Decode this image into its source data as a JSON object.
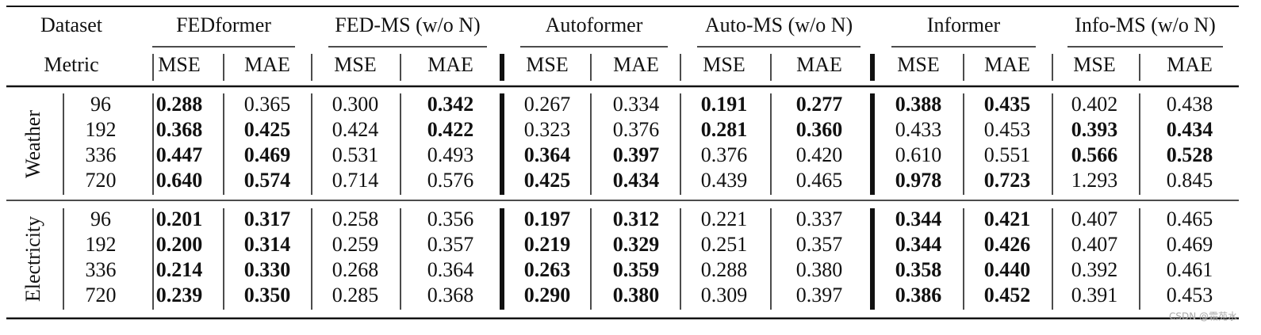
{
  "header": {
    "dataset": "Dataset",
    "metric": "Metric",
    "models": [
      "FEDformer",
      "FED-MS (w/o N)",
      "Autoformer",
      "Auto-MS (w/o N)",
      "Informer",
      "Info-MS (w/o N)"
    ],
    "metrics": [
      "MSE",
      "MAE"
    ]
  },
  "datasets": [
    {
      "name": "Weather",
      "rows": [
        {
          "horizon": "96",
          "values": [
            "0.288",
            "0.365",
            "0.300",
            "0.342",
            "0.267",
            "0.334",
            "0.191",
            "0.277",
            "0.388",
            "0.435",
            "0.402",
            "0.438"
          ],
          "bold": [
            true,
            false,
            false,
            true,
            false,
            false,
            true,
            true,
            true,
            true,
            false,
            false
          ]
        },
        {
          "horizon": "192",
          "values": [
            "0.368",
            "0.425",
            "0.424",
            "0.422",
            "0.323",
            "0.376",
            "0.281",
            "0.360",
            "0.433",
            "0.453",
            "0.393",
            "0.434"
          ],
          "bold": [
            true,
            true,
            false,
            true,
            false,
            false,
            true,
            true,
            false,
            false,
            true,
            true
          ]
        },
        {
          "horizon": "336",
          "values": [
            "0.447",
            "0.469",
            "0.531",
            "0.493",
            "0.364",
            "0.397",
            "0.376",
            "0.420",
            "0.610",
            "0.551",
            "0.566",
            "0.528"
          ],
          "bold": [
            true,
            true,
            false,
            false,
            true,
            true,
            false,
            false,
            false,
            false,
            true,
            true
          ]
        },
        {
          "horizon": "720",
          "values": [
            "0.640",
            "0.574",
            "0.714",
            "0.576",
            "0.425",
            "0.434",
            "0.439",
            "0.465",
            "0.978",
            "0.723",
            "1.293",
            "0.845"
          ],
          "bold": [
            true,
            true,
            false,
            false,
            true,
            true,
            false,
            false,
            true,
            true,
            false,
            false
          ]
        }
      ]
    },
    {
      "name": "Electricity",
      "rows": [
        {
          "horizon": "96",
          "values": [
            "0.201",
            "0.317",
            "0.258",
            "0.356",
            "0.197",
            "0.312",
            "0.221",
            "0.337",
            "0.344",
            "0.421",
            "0.407",
            "0.465"
          ],
          "bold": [
            true,
            true,
            false,
            false,
            true,
            true,
            false,
            false,
            true,
            true,
            false,
            false
          ]
        },
        {
          "horizon": "192",
          "values": [
            "0.200",
            "0.314",
            "0.259",
            "0.357",
            "0.219",
            "0.329",
            "0.251",
            "0.357",
            "0.344",
            "0.426",
            "0.407",
            "0.469"
          ],
          "bold": [
            true,
            true,
            false,
            false,
            true,
            true,
            false,
            false,
            true,
            true,
            false,
            false
          ]
        },
        {
          "horizon": "336",
          "values": [
            "0.214",
            "0.330",
            "0.268",
            "0.364",
            "0.263",
            "0.359",
            "0.288",
            "0.380",
            "0.358",
            "0.440",
            "0.392",
            "0.461"
          ],
          "bold": [
            true,
            true,
            false,
            false,
            true,
            true,
            false,
            false,
            true,
            true,
            false,
            false
          ]
        },
        {
          "horizon": "720",
          "values": [
            "0.239",
            "0.350",
            "0.285",
            "0.368",
            "0.290",
            "0.380",
            "0.309",
            "0.397",
            "0.386",
            "0.452",
            "0.391",
            "0.453"
          ],
          "bold": [
            true,
            true,
            false,
            false,
            true,
            true,
            false,
            false,
            true,
            true,
            false,
            false
          ]
        }
      ]
    }
  ],
  "watermark": "CSDN @霜苑水"
}
